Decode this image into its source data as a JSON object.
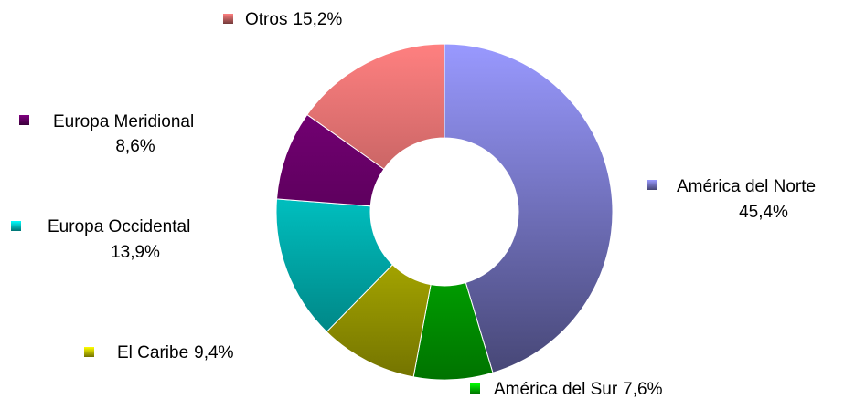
{
  "chart_data": {
    "type": "donut",
    "categories": [
      "América del Norte",
      "América del Sur",
      "El Caribe",
      "Europa Occidental",
      "Europa Meridional",
      "Otros"
    ],
    "values": [
      45.4,
      7.6,
      9.4,
      13.9,
      8.6,
      15.2
    ],
    "value_labels": [
      "45,4%",
      "7,6%",
      "9,4%",
      "13,9%",
      "8,6%",
      "15,2%"
    ],
    "colors": [
      "#9999ff",
      "#00ff00",
      "#ffff00",
      "#00ffff",
      "#800080",
      "#ff8080"
    ]
  }
}
